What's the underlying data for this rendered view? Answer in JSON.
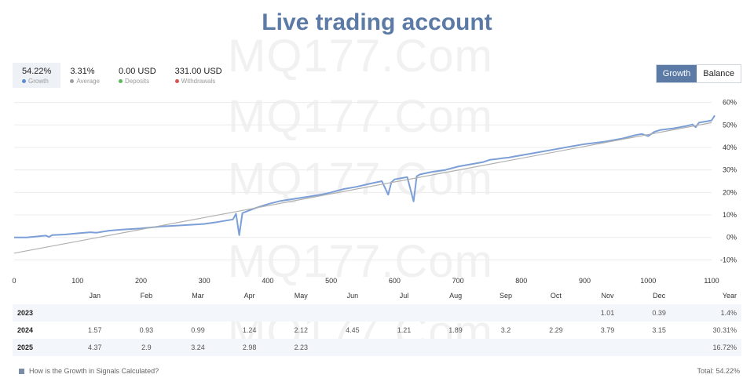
{
  "title": "Live trading account",
  "watermark": "MQ177.Com",
  "stats": [
    {
      "value": "54.22%",
      "label": "Growth",
      "color": "#5b8bd0"
    },
    {
      "value": "3.31%",
      "label": "Average",
      "color": "#9aa0a6"
    },
    {
      "value": "0.00 USD",
      "label": "Deposits",
      "color": "#5cb85c"
    },
    {
      "value": "331.00 USD",
      "label": "Withdrawals",
      "color": "#d9534f"
    }
  ],
  "tabs": [
    {
      "label": "Growth",
      "active": true
    },
    {
      "label": "Balance",
      "active": false
    }
  ],
  "chart_data": {
    "type": "line",
    "x_ticks": [
      0,
      100,
      200,
      300,
      400,
      500,
      600,
      700,
      800,
      900,
      1000,
      1100
    ],
    "y_ticks": [
      "60%",
      "50%",
      "40%",
      "30%",
      "20%",
      "10%",
      "0%",
      "-10%"
    ],
    "xlim": [
      0,
      1100
    ],
    "ylim": [
      -13,
      63
    ],
    "grid": true,
    "series": [
      {
        "color": "#7b9fd6",
        "x": [
          0,
          20,
          50,
          55,
          60,
          80,
          100,
          120,
          130,
          150,
          170,
          200,
          230,
          260,
          300,
          320,
          345,
          350,
          355,
          360,
          380,
          400,
          420,
          450,
          480,
          500,
          520,
          540,
          560,
          580,
          590,
          595,
          600,
          620,
          630,
          635,
          640,
          660,
          680,
          700,
          720,
          740,
          750,
          760,
          770,
          780,
          790,
          800,
          820,
          850,
          880,
          900,
          930,
          960,
          980,
          990,
          1000,
          1010,
          1020,
          1040,
          1060,
          1070,
          1075,
          1080,
          1100,
          1105
        ],
        "y": [
          0,
          0,
          0.8,
          0.2,
          1,
          1.3,
          1.8,
          2.3,
          2.1,
          3,
          3.5,
          4,
          4.8,
          5.3,
          6,
          6.8,
          8,
          10.5,
          1,
          10.8,
          13,
          14.8,
          16.2,
          17.5,
          18.8,
          20,
          21.5,
          22.5,
          23.8,
          25,
          19,
          24.5,
          25.8,
          26.8,
          16,
          27.2,
          28,
          29.2,
          30,
          31.5,
          32.5,
          33.5,
          34.5,
          34.8,
          35.2,
          35.5,
          36,
          36.5,
          37.5,
          39,
          40.5,
          41.5,
          42.5,
          44,
          45.5,
          46,
          45,
          47,
          47.8,
          48.5,
          49.5,
          50.2,
          49,
          51,
          52,
          54.22
        ]
      },
      {
        "color": "#b0b0b0",
        "x": [
          0,
          1100
        ],
        "y": [
          -7,
          51
        ]
      }
    ]
  },
  "table": {
    "headers": [
      "Jan",
      "Feb",
      "Mar",
      "Apr",
      "May",
      "Jun",
      "Jul",
      "Aug",
      "Sep",
      "Oct",
      "Nov",
      "Dec",
      "Year"
    ],
    "rows": [
      {
        "year": "2023",
        "cells": [
          "",
          "",
          "",
          "",
          "",
          "",
          "",
          "",
          "",
          "",
          "1.01",
          "0.39"
        ],
        "total": "1.4%"
      },
      {
        "year": "2024",
        "cells": [
          "1.57",
          "0.93",
          "0.99",
          "1.24",
          "2.12",
          "4.45",
          "1.21",
          "1.89",
          "3.2",
          "2.29",
          "3.79",
          "3.15"
        ],
        "total": "30.31%"
      },
      {
        "year": "2025",
        "cells": [
          "4.37",
          "2.9",
          "3.24",
          "2.98",
          "2.23",
          "",
          "",
          "",
          "",
          "",
          "",
          ""
        ],
        "total": "16.72%"
      }
    ]
  },
  "footer": {
    "link": "How is the Growth in Signals Calculated?",
    "total": "Total: 54.22%"
  }
}
